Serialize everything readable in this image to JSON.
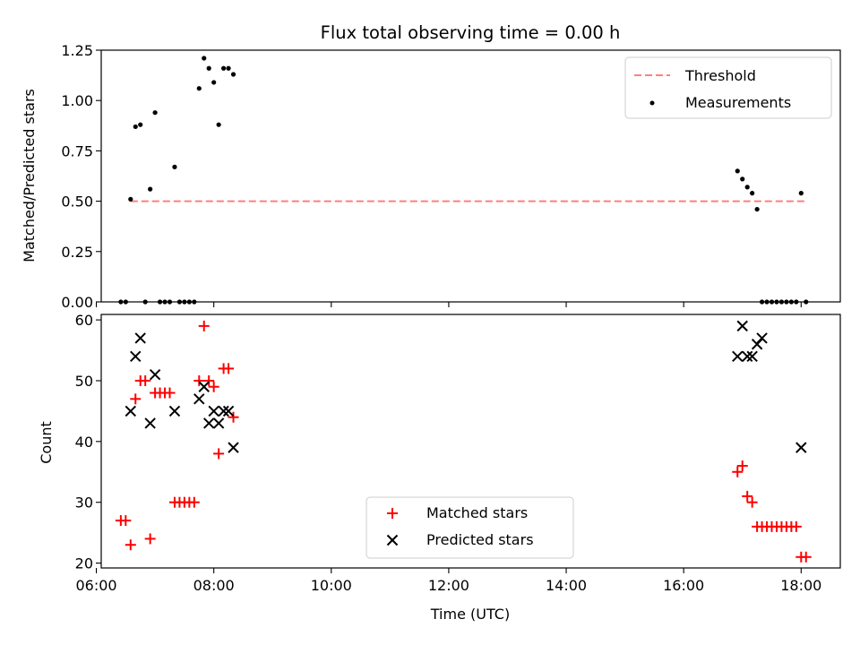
{
  "chart_data": [
    {
      "type": "scatter",
      "title": "Flux total observing time = 0.00 h",
      "xlabel": "",
      "ylabel": "Matched/Predicted stars",
      "ylim": [
        0,
        1.25
      ],
      "yticks": [
        "0.00",
        "0.25",
        "0.50",
        "0.75",
        "1.00",
        "1.25"
      ],
      "xlim": [
        "06:05",
        "18:40"
      ],
      "xticks": [
        "06:00",
        "08:00",
        "10:00",
        "12:00",
        "14:00",
        "16:00",
        "18:00"
      ],
      "xticklabels_visible": false,
      "legend_position": "top-right",
      "threshold": {
        "name": "Threshold",
        "x": [
          "06:35",
          "18:05"
        ],
        "y": 0.5,
        "color": "#ff7f7f",
        "style": "dashed"
      },
      "series": [
        {
          "name": "Measurements",
          "color": "#000000",
          "marker": "dot",
          "points": [
            [
              "06:25",
              0.0
            ],
            [
              "06:30",
              0.0
            ],
            [
              "06:35",
              0.51
            ],
            [
              "06:40",
              0.87
            ],
            [
              "06:45",
              0.88
            ],
            [
              "06:50",
              0.0
            ],
            [
              "06:55",
              0.56
            ],
            [
              "07:00",
              0.94
            ],
            [
              "07:05",
              0.0
            ],
            [
              "07:10",
              0.0
            ],
            [
              "07:15",
              0.0
            ],
            [
              "07:20",
              0.67
            ],
            [
              "07:25",
              0.0
            ],
            [
              "07:30",
              0.0
            ],
            [
              "07:35",
              0.0
            ],
            [
              "07:40",
              0.0
            ],
            [
              "07:45",
              1.06
            ],
            [
              "07:50",
              1.21
            ],
            [
              "07:55",
              1.16
            ],
            [
              "08:00",
              1.09
            ],
            [
              "08:05",
              0.88
            ],
            [
              "08:10",
              1.16
            ],
            [
              "08:15",
              1.16
            ],
            [
              "08:20",
              1.13
            ],
            [
              "16:55",
              0.65
            ],
            [
              "17:00",
              0.61
            ],
            [
              "17:05",
              0.57
            ],
            [
              "17:10",
              0.54
            ],
            [
              "17:15",
              0.46
            ],
            [
              "17:20",
              0.0
            ],
            [
              "17:25",
              0.0
            ],
            [
              "17:30",
              0.0
            ],
            [
              "17:35",
              0.0
            ],
            [
              "17:40",
              0.0
            ],
            [
              "17:45",
              0.0
            ],
            [
              "17:50",
              0.0
            ],
            [
              "17:55",
              0.0
            ],
            [
              "18:00",
              0.54
            ],
            [
              "18:05",
              0.0
            ]
          ]
        }
      ]
    },
    {
      "type": "scatter",
      "title": "",
      "xlabel": "Time (UTC)",
      "ylabel": "Count",
      "ylim": [
        19.2,
        60.9
      ],
      "yticks": [
        "20",
        "30",
        "40",
        "50",
        "60"
      ],
      "xlim": [
        "06:05",
        "18:40"
      ],
      "xticks": [
        "06:00",
        "08:00",
        "10:00",
        "12:00",
        "14:00",
        "16:00",
        "18:00"
      ],
      "legend_position": "bottom-center",
      "series": [
        {
          "name": "Matched stars",
          "color": "#ff0000",
          "marker": "plus",
          "points": [
            [
              "06:25",
              27
            ],
            [
              "06:30",
              27
            ],
            [
              "06:35",
              23
            ],
            [
              "06:40",
              47
            ],
            [
              "06:45",
              50
            ],
            [
              "06:50",
              50
            ],
            [
              "06:55",
              24
            ],
            [
              "07:00",
              48
            ],
            [
              "07:05",
              48
            ],
            [
              "07:10",
              48
            ],
            [
              "07:15",
              48
            ],
            [
              "07:20",
              30
            ],
            [
              "07:25",
              30
            ],
            [
              "07:30",
              30
            ],
            [
              "07:35",
              30
            ],
            [
              "07:40",
              30
            ],
            [
              "07:45",
              50
            ],
            [
              "07:50",
              59
            ],
            [
              "07:55",
              50
            ],
            [
              "08:00",
              49
            ],
            [
              "08:05",
              38
            ],
            [
              "08:10",
              52
            ],
            [
              "08:15",
              52
            ],
            [
              "08:20",
              44
            ],
            [
              "16:55",
              35
            ],
            [
              "17:00",
              36
            ],
            [
              "17:05",
              31
            ],
            [
              "17:10",
              30
            ],
            [
              "17:15",
              26
            ],
            [
              "17:20",
              26
            ],
            [
              "17:25",
              26
            ],
            [
              "17:30",
              26
            ],
            [
              "17:35",
              26
            ],
            [
              "17:40",
              26
            ],
            [
              "17:45",
              26
            ],
            [
              "17:50",
              26
            ],
            [
              "17:55",
              26
            ],
            [
              "18:00",
              21
            ],
            [
              "18:05",
              21
            ]
          ]
        },
        {
          "name": "Predicted stars",
          "color": "#000000",
          "marker": "x",
          "points": [
            [
              "06:35",
              45
            ],
            [
              "06:40",
              54
            ],
            [
              "06:45",
              57
            ],
            [
              "06:55",
              43
            ],
            [
              "07:00",
              51
            ],
            [
              "07:20",
              45
            ],
            [
              "07:45",
              47
            ],
            [
              "07:50",
              49
            ],
            [
              "07:55",
              43
            ],
            [
              "08:00",
              45
            ],
            [
              "08:05",
              43
            ],
            [
              "08:10",
              45
            ],
            [
              "08:15",
              45
            ],
            [
              "08:20",
              39
            ],
            [
              "16:55",
              54
            ],
            [
              "17:00",
              59
            ],
            [
              "17:05",
              54
            ],
            [
              "17:10",
              54
            ],
            [
              "17:15",
              56
            ],
            [
              "17:20",
              57
            ],
            [
              "18:00",
              39
            ]
          ]
        }
      ]
    }
  ]
}
